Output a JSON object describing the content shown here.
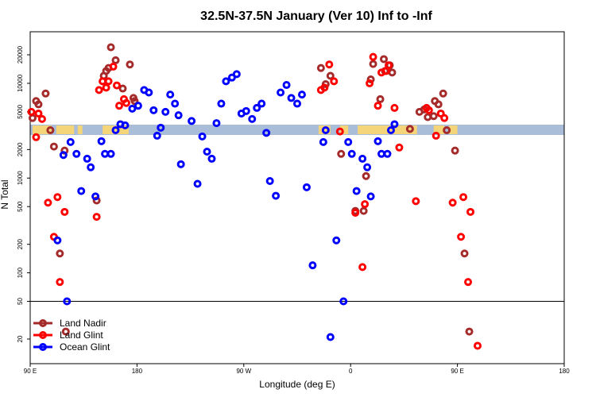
{
  "chart_data": {
    "type": "scatter",
    "title": "32.5N-37.5N January (Ver 10)   Inf to -Inf",
    "xlabel": "Longitude (deg E)",
    "ylabel": "N Total",
    "x_ticks": [
      {
        "value": -90,
        "label": "90 E"
      },
      {
        "value": 0,
        "label": "180"
      },
      {
        "value": 90,
        "label": "90 W"
      },
      {
        "value": 180,
        "label": "0"
      },
      {
        "value": 270,
        "label": "90 E"
      },
      {
        "value": 360,
        "label": "180"
      }
    ],
    "y_ticks": [
      {
        "value": 20,
        "label": "20"
      },
      {
        "value": 50,
        "label": "50"
      },
      {
        "value": 100,
        "label": "100"
      },
      {
        "value": 200,
        "label": "200"
      },
      {
        "value": 500,
        "label": "500"
      },
      {
        "value": 1000,
        "label": "1000"
      },
      {
        "value": 2000,
        "label": "2000"
      },
      {
        "value": 5000,
        "label": "5000"
      },
      {
        "value": 10000,
        "label": "10000"
      },
      {
        "value": 20000,
        "label": "20000"
      }
    ],
    "xlim": [
      -90,
      360
    ],
    "ylim": [
      11,
      35000
    ],
    "reference_line_y": 50,
    "map_strip": {
      "land_color": "#f5d57a",
      "ocean_color": "#a9bcd8"
    },
    "series": [
      {
        "name": "Land Nadir",
        "color": "#a52a2a",
        "points": [
          [
            -88,
            4300
          ],
          [
            -85,
            6500
          ],
          [
            -83,
            6000
          ],
          [
            -77,
            7800
          ],
          [
            -73,
            3200
          ],
          [
            -70,
            2150
          ],
          [
            -65,
            160
          ],
          [
            -61,
            1950
          ],
          [
            -60,
            24
          ],
          [
            -34,
            580
          ],
          [
            -28,
            12000
          ],
          [
            -26,
            13500
          ],
          [
            -24,
            14500
          ],
          [
            -22,
            24000
          ],
          [
            -18,
            17500
          ],
          [
            -12,
            8800
          ],
          [
            -6,
            15800
          ],
          [
            -3,
            7000
          ],
          [
            -2,
            6500
          ],
          [
            155,
            14500
          ],
          [
            159,
            9800
          ],
          [
            163,
            12000
          ],
          [
            172,
            1800
          ],
          [
            184,
            450
          ],
          [
            191,
            450
          ],
          [
            193,
            1050
          ],
          [
            197,
            11000
          ],
          [
            199,
            16000
          ],
          [
            205,
            6800
          ],
          [
            208,
            18000
          ],
          [
            209,
            13500
          ],
          [
            213,
            15500
          ],
          [
            215,
            13000
          ],
          [
            230,
            3300
          ],
          [
            238,
            5000
          ],
          [
            242,
            5300
          ],
          [
            245,
            4400
          ],
          [
            250,
            4500
          ],
          [
            251,
            6500
          ],
          [
            254,
            6000
          ],
          [
            258,
            7800
          ],
          [
            261,
            3200
          ],
          [
            268,
            1950
          ],
          [
            276,
            160
          ],
          [
            280,
            24
          ]
        ]
      },
      {
        "name": "Land Glint",
        "color": "#ff0000",
        "points": [
          [
            -89,
            5000
          ],
          [
            -85,
            2700
          ],
          [
            -83,
            4800
          ],
          [
            -80,
            4200
          ],
          [
            -75,
            550
          ],
          [
            -70,
            240
          ],
          [
            -67,
            630
          ],
          [
            -65,
            80
          ],
          [
            -61,
            440
          ],
          [
            -34,
            390
          ],
          [
            -32,
            8500
          ],
          [
            -29,
            10500
          ],
          [
            -26,
            9000
          ],
          [
            -24,
            10500
          ],
          [
            -20,
            15000
          ],
          [
            -17,
            9500
          ],
          [
            -15,
            5800
          ],
          [
            -11,
            6800
          ],
          [
            -9,
            6200
          ],
          [
            155,
            8500
          ],
          [
            158,
            9000
          ],
          [
            162,
            15800
          ],
          [
            166,
            10500
          ],
          [
            171,
            3100
          ],
          [
            184,
            430
          ],
          [
            190,
            115
          ],
          [
            192,
            530
          ],
          [
            196,
            10000
          ],
          [
            199,
            19000
          ],
          [
            203,
            5800
          ],
          [
            206,
            13000
          ],
          [
            210,
            13500
          ],
          [
            212,
            15500
          ],
          [
            217,
            5500
          ],
          [
            221,
            2100
          ],
          [
            235,
            570
          ],
          [
            244,
            5500
          ],
          [
            246,
            5200
          ],
          [
            252,
            2800
          ],
          [
            256,
            4800
          ],
          [
            259,
            4300
          ],
          [
            266,
            550
          ],
          [
            273,
            240
          ],
          [
            275,
            630
          ],
          [
            279,
            80
          ],
          [
            281,
            440
          ],
          [
            287,
            17
          ]
        ]
      },
      {
        "name": "Ocean Glint",
        "color": "#0000ff",
        "points": [
          [
            -67,
            220
          ],
          [
            -62,
            1750
          ],
          [
            -59,
            50
          ],
          [
            -56,
            2400
          ],
          [
            -51,
            1800
          ],
          [
            -47,
            730
          ],
          [
            -42,
            1600
          ],
          [
            -39,
            1300
          ],
          [
            -35,
            640
          ],
          [
            -30,
            2450
          ],
          [
            -27,
            1800
          ],
          [
            -22,
            1800
          ],
          [
            -18,
            3200
          ],
          [
            -14,
            3700
          ],
          [
            -10,
            3600
          ],
          [
            -4,
            5400
          ],
          [
            1,
            5800
          ],
          [
            6,
            8500
          ],
          [
            10,
            8000
          ],
          [
            14,
            5200
          ],
          [
            17,
            2800
          ],
          [
            20,
            3400
          ],
          [
            24,
            5000
          ],
          [
            28,
            7600
          ],
          [
            32,
            6100
          ],
          [
            35,
            4600
          ],
          [
            37,
            1400
          ],
          [
            46,
            4000
          ],
          [
            51,
            870
          ],
          [
            55,
            2750
          ],
          [
            59,
            1900
          ],
          [
            63,
            1600
          ],
          [
            67,
            3800
          ],
          [
            71,
            6100
          ],
          [
            75,
            10500
          ],
          [
            80,
            11500
          ],
          [
            84,
            12500
          ],
          [
            88,
            4800
          ],
          [
            92,
            5100
          ],
          [
            97,
            4200
          ],
          [
            101,
            5500
          ],
          [
            105,
            6100
          ],
          [
            109,
            3000
          ],
          [
            112,
            930
          ],
          [
            117,
            650
          ],
          [
            121,
            8000
          ],
          [
            126,
            9600
          ],
          [
            130,
            7000
          ],
          [
            135,
            6100
          ],
          [
            139,
            7600
          ],
          [
            143,
            800
          ],
          [
            148,
            120
          ],
          [
            157,
            2400
          ],
          [
            159,
            3200
          ],
          [
            163,
            21
          ],
          [
            168,
            220
          ],
          [
            174,
            50
          ],
          [
            178,
            2400
          ],
          [
            181,
            1800
          ],
          [
            185,
            730
          ],
          [
            190,
            1600
          ],
          [
            194,
            1300
          ],
          [
            197,
            640
          ],
          [
            203,
            2450
          ],
          [
            206,
            1800
          ],
          [
            211,
            1800
          ],
          [
            214,
            3200
          ],
          [
            217,
            3700
          ]
        ]
      }
    ],
    "legend": {
      "position": "bottom-left",
      "entries": [
        {
          "label": "Land Nadir",
          "color": "#a52a2a"
        },
        {
          "label": "Land Glint",
          "color": "#ff0000"
        },
        {
          "label": "Ocean Glint",
          "color": "#0000ff"
        }
      ]
    }
  }
}
